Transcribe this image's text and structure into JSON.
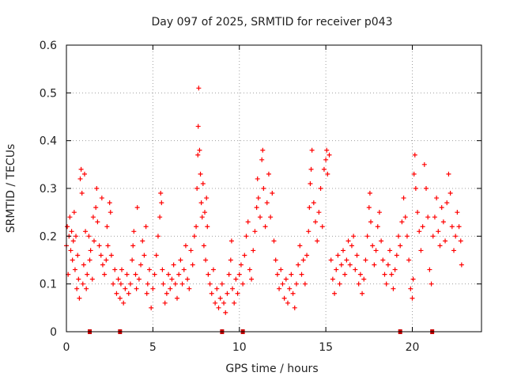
{
  "chart_data": {
    "type": "scatter",
    "title": "Day 097 of 2025, SRMTID for receiver p043",
    "xlabel": "GPS time / hours",
    "ylabel": "SRMTID / TECUs",
    "xlim": [
      0,
      24
    ],
    "ylim": [
      0,
      0.6
    ],
    "xticks": [
      0,
      5,
      10,
      15,
      20
    ],
    "xtick_labels": [
      "0",
      "5",
      "10",
      "15",
      "20"
    ],
    "yticks": [
      0,
      0.1,
      0.2,
      0.3,
      0.4,
      0.5,
      0.6
    ],
    "ytick_labels": [
      "0",
      "0.1",
      "0.2",
      "0.3",
      "0.4",
      "0.5",
      "0.6"
    ],
    "grid": true,
    "marker": "plus",
    "color": "#ff0000",
    "series": [
      {
        "name": "SRMTID",
        "points": [
          [
            0.0,
            0.18
          ],
          [
            0.05,
            0.22
          ],
          [
            0.1,
            0.12
          ],
          [
            0.15,
            0.2
          ],
          [
            0.2,
            0.24
          ],
          [
            0.25,
            0.17
          ],
          [
            0.3,
            0.21
          ],
          [
            0.35,
            0.15
          ],
          [
            0.4,
            0.19
          ],
          [
            0.45,
            0.25
          ],
          [
            0.5,
            0.13
          ],
          [
            0.55,
            0.2
          ],
          [
            0.6,
            0.09
          ],
          [
            0.65,
            0.16
          ],
          [
            0.7,
            0.11
          ],
          [
            0.75,
            0.07
          ],
          [
            0.8,
            0.32
          ],
          [
            0.85,
            0.34
          ],
          [
            0.9,
            0.29
          ],
          [
            0.95,
            0.1
          ],
          [
            1.0,
            0.14
          ],
          [
            1.05,
            0.33
          ],
          [
            1.1,
            0.21
          ],
          [
            1.15,
            0.09
          ],
          [
            1.2,
            0.12
          ],
          [
            1.3,
            0.2
          ],
          [
            1.35,
            0.15
          ],
          [
            1.4,
            0.17
          ],
          [
            1.5,
            0.11
          ],
          [
            1.55,
            0.24
          ],
          [
            1.6,
            0.19
          ],
          [
            1.7,
            0.26
          ],
          [
            1.75,
            0.3
          ],
          [
            1.8,
            0.23
          ],
          [
            1.9,
            0.18
          ],
          [
            2.0,
            0.16
          ],
          [
            2.05,
            0.28
          ],
          [
            2.1,
            0.14
          ],
          [
            2.2,
            0.12
          ],
          [
            2.3,
            0.15
          ],
          [
            2.35,
            0.22
          ],
          [
            2.4,
            0.18
          ],
          [
            2.5,
            0.27
          ],
          [
            2.55,
            0.25
          ],
          [
            2.6,
            0.16
          ],
          [
            2.7,
            0.1
          ],
          [
            2.8,
            0.13
          ],
          [
            2.9,
            0.08
          ],
          [
            3.0,
            0.11
          ],
          [
            3.1,
            0.07
          ],
          [
            3.15,
            0.1
          ],
          [
            3.2,
            0.13
          ],
          [
            3.3,
            0.06
          ],
          [
            3.4,
            0.09
          ],
          [
            3.5,
            0.12
          ],
          [
            3.6,
            0.08
          ],
          [
            3.7,
            0.1
          ],
          [
            3.8,
            0.15
          ],
          [
            3.85,
            0.18
          ],
          [
            3.9,
            0.21
          ],
          [
            4.0,
            0.12
          ],
          [
            4.05,
            0.09
          ],
          [
            4.1,
            0.26
          ],
          [
            4.2,
            0.11
          ],
          [
            4.3,
            0.14
          ],
          [
            4.4,
            0.19
          ],
          [
            4.5,
            0.16
          ],
          [
            4.6,
            0.22
          ],
          [
            4.65,
            0.08
          ],
          [
            4.7,
            0.1
          ],
          [
            4.8,
            0.13
          ],
          [
            4.9,
            0.05
          ],
          [
            5.0,
            0.09
          ],
          [
            5.1,
            0.12
          ],
          [
            5.2,
            0.16
          ],
          [
            5.3,
            0.2
          ],
          [
            5.4,
            0.24
          ],
          [
            5.45,
            0.29
          ],
          [
            5.5,
            0.27
          ],
          [
            5.55,
            0.13
          ],
          [
            5.6,
            0.1
          ],
          [
            5.7,
            0.06
          ],
          [
            5.8,
            0.08
          ],
          [
            5.9,
            0.12
          ],
          [
            6.0,
            0.09
          ],
          [
            6.1,
            0.11
          ],
          [
            6.2,
            0.14
          ],
          [
            6.3,
            0.1
          ],
          [
            6.4,
            0.07
          ],
          [
            6.5,
            0.12
          ],
          [
            6.6,
            0.15
          ],
          [
            6.7,
            0.1
          ],
          [
            6.8,
            0.13
          ],
          [
            6.9,
            0.18
          ],
          [
            7.0,
            0.11
          ],
          [
            7.1,
            0.09
          ],
          [
            7.2,
            0.17
          ],
          [
            7.3,
            0.14
          ],
          [
            7.4,
            0.2
          ],
          [
            7.5,
            0.22
          ],
          [
            7.55,
            0.3
          ],
          [
            7.6,
            0.37
          ],
          [
            7.62,
            0.43
          ],
          [
            7.65,
            0.51
          ],
          [
            7.7,
            0.38
          ],
          [
            7.75,
            0.33
          ],
          [
            7.8,
            0.27
          ],
          [
            7.85,
            0.24
          ],
          [
            7.9,
            0.31
          ],
          [
            7.95,
            0.18
          ],
          [
            8.0,
            0.25
          ],
          [
            8.05,
            0.15
          ],
          [
            8.1,
            0.28
          ],
          [
            8.15,
            0.22
          ],
          [
            8.2,
            0.12
          ],
          [
            8.3,
            0.1
          ],
          [
            8.4,
            0.08
          ],
          [
            8.5,
            0.13
          ],
          [
            8.6,
            0.06
          ],
          [
            8.7,
            0.09
          ],
          [
            8.8,
            0.05
          ],
          [
            8.9,
            0.07
          ],
          [
            9.0,
            0.1
          ],
          [
            9.1,
            0.06
          ],
          [
            9.2,
            0.04
          ],
          [
            9.3,
            0.08
          ],
          [
            9.4,
            0.12
          ],
          [
            9.5,
            0.15
          ],
          [
            9.55,
            0.19
          ],
          [
            9.6,
            0.09
          ],
          [
            9.7,
            0.06
          ],
          [
            9.8,
            0.11
          ],
          [
            9.9,
            0.08
          ],
          [
            10.0,
            0.12
          ],
          [
            10.1,
            0.14
          ],
          [
            10.2,
            0.1
          ],
          [
            10.3,
            0.16
          ],
          [
            10.4,
            0.2
          ],
          [
            10.5,
            0.23
          ],
          [
            10.6,
            0.13
          ],
          [
            10.7,
            0.11
          ],
          [
            10.8,
            0.17
          ],
          [
            10.9,
            0.21
          ],
          [
            11.0,
            0.26
          ],
          [
            11.05,
            0.32
          ],
          [
            11.1,
            0.28
          ],
          [
            11.2,
            0.24
          ],
          [
            11.3,
            0.36
          ],
          [
            11.35,
            0.38
          ],
          [
            11.4,
            0.3
          ],
          [
            11.5,
            0.22
          ],
          [
            11.6,
            0.27
          ],
          [
            11.7,
            0.33
          ],
          [
            11.8,
            0.24
          ],
          [
            11.9,
            0.29
          ],
          [
            12.0,
            0.19
          ],
          [
            12.1,
            0.15
          ],
          [
            12.2,
            0.12
          ],
          [
            12.3,
            0.09
          ],
          [
            12.4,
            0.13
          ],
          [
            12.5,
            0.1
          ],
          [
            12.6,
            0.07
          ],
          [
            12.7,
            0.11
          ],
          [
            12.8,
            0.06
          ],
          [
            12.9,
            0.09
          ],
          [
            13.0,
            0.12
          ],
          [
            13.1,
            0.08
          ],
          [
            13.2,
            0.05
          ],
          [
            13.3,
            0.1
          ],
          [
            13.4,
            0.14
          ],
          [
            13.5,
            0.18
          ],
          [
            13.6,
            0.12
          ],
          [
            13.7,
            0.15
          ],
          [
            13.8,
            0.1
          ],
          [
            13.9,
            0.16
          ],
          [
            14.0,
            0.21
          ],
          [
            14.05,
            0.26
          ],
          [
            14.1,
            0.31
          ],
          [
            14.15,
            0.34
          ],
          [
            14.2,
            0.38
          ],
          [
            14.3,
            0.27
          ],
          [
            14.4,
            0.23
          ],
          [
            14.5,
            0.19
          ],
          [
            14.6,
            0.25
          ],
          [
            14.7,
            0.3
          ],
          [
            14.8,
            0.22
          ],
          [
            14.9,
            0.34
          ],
          [
            15.0,
            0.36
          ],
          [
            15.05,
            0.38
          ],
          [
            15.1,
            0.33
          ],
          [
            15.2,
            0.37
          ],
          [
            15.3,
            0.15
          ],
          [
            15.4,
            0.11
          ],
          [
            15.5,
            0.08
          ],
          [
            15.6,
            0.13
          ],
          [
            15.7,
            0.16
          ],
          [
            15.8,
            0.1
          ],
          [
            15.9,
            0.14
          ],
          [
            16.0,
            0.17
          ],
          [
            16.1,
            0.12
          ],
          [
            16.2,
            0.15
          ],
          [
            16.3,
            0.19
          ],
          [
            16.4,
            0.14
          ],
          [
            16.5,
            0.18
          ],
          [
            16.6,
            0.2
          ],
          [
            16.7,
            0.13
          ],
          [
            16.8,
            0.16
          ],
          [
            16.9,
            0.1
          ],
          [
            17.0,
            0.12
          ],
          [
            17.1,
            0.08
          ],
          [
            17.2,
            0.11
          ],
          [
            17.3,
            0.15
          ],
          [
            17.4,
            0.2
          ],
          [
            17.5,
            0.26
          ],
          [
            17.55,
            0.29
          ],
          [
            17.6,
            0.23
          ],
          [
            17.7,
            0.18
          ],
          [
            17.8,
            0.14
          ],
          [
            17.9,
            0.17
          ],
          [
            18.0,
            0.22
          ],
          [
            18.1,
            0.25
          ],
          [
            18.2,
            0.19
          ],
          [
            18.3,
            0.15
          ],
          [
            18.4,
            0.12
          ],
          [
            18.5,
            0.1
          ],
          [
            18.6,
            0.14
          ],
          [
            18.7,
            0.17
          ],
          [
            18.8,
            0.12
          ],
          [
            18.9,
            0.09
          ],
          [
            19.0,
            0.13
          ],
          [
            19.1,
            0.16
          ],
          [
            19.2,
            0.2
          ],
          [
            19.3,
            0.18
          ],
          [
            19.4,
            0.23
          ],
          [
            19.5,
            0.28
          ],
          [
            19.6,
            0.24
          ],
          [
            19.7,
            0.2
          ],
          [
            19.8,
            0.15
          ],
          [
            19.9,
            0.09
          ],
          [
            20.0,
            0.07
          ],
          [
            20.05,
            0.11
          ],
          [
            20.1,
            0.33
          ],
          [
            20.15,
            0.37
          ],
          [
            20.2,
            0.3
          ],
          [
            20.3,
            0.25
          ],
          [
            20.4,
            0.21
          ],
          [
            20.5,
            0.17
          ],
          [
            20.6,
            0.22
          ],
          [
            20.7,
            0.35
          ],
          [
            20.8,
            0.3
          ],
          [
            20.9,
            0.24
          ],
          [
            21.0,
            0.13
          ],
          [
            21.1,
            0.1
          ],
          [
            21.2,
            0.2
          ],
          [
            21.3,
            0.24
          ],
          [
            21.4,
            0.28
          ],
          [
            21.5,
            0.21
          ],
          [
            21.6,
            0.18
          ],
          [
            21.7,
            0.26
          ],
          [
            21.8,
            0.23
          ],
          [
            21.9,
            0.19
          ],
          [
            22.0,
            0.27
          ],
          [
            22.1,
            0.33
          ],
          [
            22.2,
            0.29
          ],
          [
            22.3,
            0.22
          ],
          [
            22.4,
            0.17
          ],
          [
            22.5,
            0.2
          ],
          [
            22.6,
            0.25
          ],
          [
            22.7,
            0.22
          ],
          [
            22.8,
            0.19
          ],
          [
            22.85,
            0.14
          ]
        ]
      }
    ],
    "gap_markers_x": [
      1.35,
      3.1,
      9.0,
      10.2,
      19.3,
      21.15
    ]
  }
}
